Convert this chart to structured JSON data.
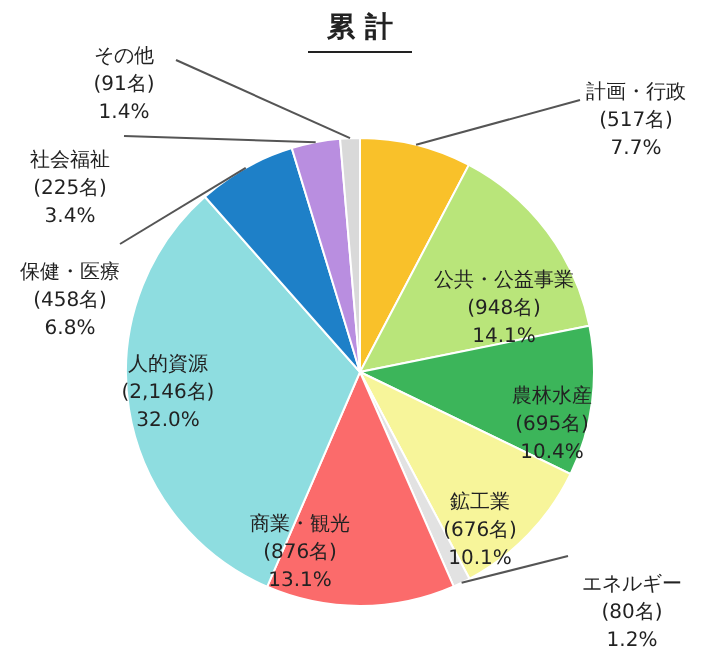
{
  "chart_data": {
    "type": "pie",
    "title": "累 計",
    "categories": [
      "計画・行政",
      "公共・公益事業",
      "農林水産",
      "鉱工業",
      "エネルギー",
      "商業・観光",
      "人的資源",
      "保健・医療",
      "社会福祉",
      "その他"
    ],
    "values": [
      517,
      948,
      695,
      676,
      80,
      876,
      2146,
      458,
      225,
      91
    ],
    "value_labels": [
      "(517名)\n7.7%",
      "(948名)\n14.1%",
      "(695名)\n10.4%",
      "(676名)\n10.1%",
      "(80名)\n1.2%",
      "(876名)\n13.1%",
      "(2,146名)\n32.0%",
      "(458名)\n6.8%",
      "(225名)\n3.4%",
      "(91名)\n1.4%"
    ],
    "colors": [
      "#f9c12a",
      "#b9e57a",
      "#3cb55a",
      "#f7f59a",
      "#e2e2e2",
      "#fb6b6b",
      "#8edde0",
      "#1e80c8",
      "#b98ee0",
      "#d9d9d9"
    ]
  }
}
